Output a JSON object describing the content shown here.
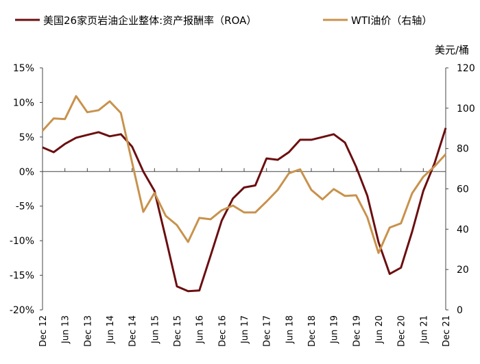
{
  "chart_data": {
    "type": "line",
    "title": "",
    "x": [
      "Dec 12",
      "Mar 13",
      "Jun 13",
      "Sep 13",
      "Dec 13",
      "Mar 14",
      "Jun 14",
      "Sep 14",
      "Dec 14",
      "Mar 15",
      "Jun 15",
      "Sep 15",
      "Dec 15",
      "Mar 16",
      "Jun 16",
      "Sep 16",
      "Dec 16",
      "Mar 17",
      "Jun 17",
      "Sep 17",
      "Dec 17",
      "Mar 18",
      "Jun 18",
      "Sep 18",
      "Dec 18",
      "Mar 19",
      "Jun 19",
      "Sep 19",
      "Dec 19",
      "Mar 20",
      "Jun 20",
      "Sep 20",
      "Dec 20",
      "Mar 21",
      "Jun 21",
      "Sep 21",
      "Dec 21"
    ],
    "x_tick_labels": [
      "Dec 12",
      "Jun 13",
      "Dec 13",
      "Jun 14",
      "Dec 14",
      "Jun 15",
      "Dec 15",
      "Jun 16",
      "Dec 16",
      "Jun 17",
      "Dec 17",
      "Jun 18",
      "Dec 18",
      "Jun 19",
      "Dec 19",
      "Jun 20",
      "Dec 20",
      "Jun 21",
      "Dec 21"
    ],
    "y_left": {
      "ylim": [
        -20,
        15
      ],
      "ticks": [
        "15%",
        "10%",
        "5%",
        "0%",
        "-5%",
        "-10%",
        "-15%",
        "-20%"
      ]
    },
    "y_right": {
      "ylim": [
        0,
        120
      ],
      "ticks": [
        "120",
        "100",
        "80",
        "60",
        "40",
        "20",
        "0"
      ],
      "unit": "美元/桶"
    },
    "grid": false,
    "legend_position": "top",
    "series": [
      {
        "name": "美国26家页岩油企业整体:资产报酬率（ROA）",
        "axis": "left",
        "color": "#6B0E10",
        "values": [
          3.5,
          2.8,
          4.0,
          4.9,
          5.3,
          5.7,
          5.1,
          5.4,
          3.6,
          0.0,
          -2.8,
          -9.6,
          -16.6,
          -17.3,
          -17.2,
          -12.2,
          -7.1,
          -3.9,
          -2.3,
          -2.0,
          1.9,
          1.7,
          2.8,
          4.6,
          4.6,
          5.0,
          5.4,
          4.2,
          0.7,
          -3.5,
          -10.2,
          -14.8,
          -13.9,
          -8.7,
          -2.8,
          1.2,
          6.3
        ]
      },
      {
        "name": "WTI油价（右轴）",
        "axis": "right",
        "color": "#C8924C",
        "values": [
          88.8,
          94.9,
          94.6,
          106,
          98,
          99,
          103.4,
          97.6,
          73,
          48.6,
          58,
          46.6,
          42,
          33.7,
          45.6,
          44.9,
          49.4,
          51.7,
          48.3,
          48.3,
          53.7,
          59.5,
          67.7,
          69.7,
          59.5,
          54.8,
          59.9,
          56.5,
          56.8,
          45.9,
          28.2,
          40.8,
          42.9,
          57.8,
          66,
          71.1,
          77.2
        ]
      }
    ]
  }
}
